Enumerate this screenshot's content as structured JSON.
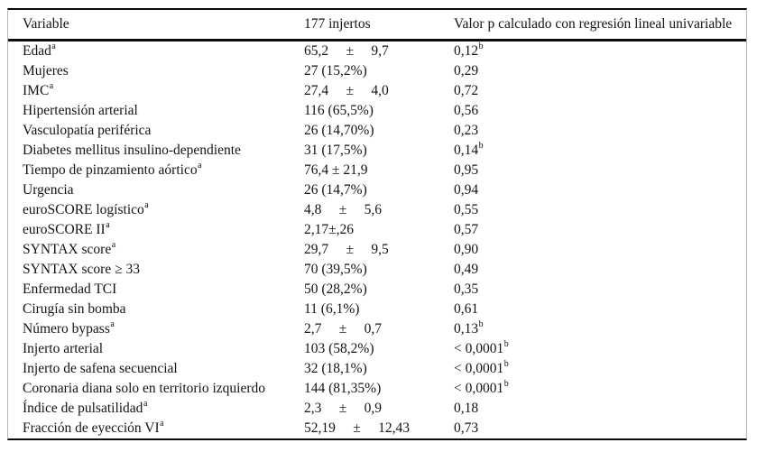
{
  "table": {
    "columns": [
      "Variable",
      "177 injertos",
      "Valor p calculado con regresión lineal univariable"
    ],
    "rule_color": "#0a0a0a",
    "side_rule_color": "#b5b5b5",
    "rows": [
      {
        "variable": "Edad",
        "variable_sup": "a",
        "value": "65,2     ±     9,7",
        "p": "0,12",
        "p_sup": "b"
      },
      {
        "variable": "Mujeres",
        "variable_sup": "",
        "value": "27 (15,2%)",
        "p": "0,29",
        "p_sup": ""
      },
      {
        "variable": "IMC",
        "variable_sup": "a",
        "value": "27,4     ±     4,0",
        "p": "0,72",
        "p_sup": ""
      },
      {
        "variable": "Hipertensión arterial",
        "variable_sup": "",
        "value": "116 (65,5%)",
        "p": "0,56",
        "p_sup": ""
      },
      {
        "variable": "Vasculopatía periférica",
        "variable_sup": "",
        "value": "26 (14,70%)",
        "p": "0,23",
        "p_sup": ""
      },
      {
        "variable": "Diabetes mellitus insulino-dependiente",
        "variable_sup": "",
        "value": "31 (17,5%)",
        "p": "0,14",
        "p_sup": "b"
      },
      {
        "variable": "Tiempo de pinzamiento aórtico",
        "variable_sup": "a",
        "value": "76,4 ± 21,9",
        "p": "0,95",
        "p_sup": ""
      },
      {
        "variable": "Urgencia",
        "variable_sup": "",
        "value": "26 (14,7%)",
        "p": "0,94",
        "p_sup": ""
      },
      {
        "variable": "euroSCORE logístico",
        "variable_sup": "a",
        "value": "4,8     ±     5,6",
        "p": "0,55",
        "p_sup": ""
      },
      {
        "variable": "euroSCORE II",
        "variable_sup": "a",
        "value": "2,17±,26",
        "p": "0,57",
        "p_sup": ""
      },
      {
        "variable": "SYNTAX score",
        "variable_sup": "a",
        "value": "29,7     ±     9,5",
        "p": "0,90",
        "p_sup": ""
      },
      {
        "variable": "SYNTAX score ≥ 33",
        "variable_sup": "",
        "value": "70 (39,5%)",
        "p": "0,49",
        "p_sup": ""
      },
      {
        "variable": "Enfermedad TCI",
        "variable_sup": "",
        "value": "50 (28,2%)",
        "p": "0,35",
        "p_sup": ""
      },
      {
        "variable": "Cirugía sin bomba",
        "variable_sup": "",
        "value": "11 (6,1%)",
        "p": "0,61",
        "p_sup": ""
      },
      {
        "variable": "Número bypass",
        "variable_sup": "a",
        "value": "2,7     ±     0,7",
        "p": "0,13",
        "p_sup": "b"
      },
      {
        "variable": "Injerto arterial",
        "variable_sup": "",
        "value": "103 (58,2%)",
        "p": "< 0,0001",
        "p_sup": "b"
      },
      {
        "variable": "Injerto de safena secuencial",
        "variable_sup": "",
        "value": "32 (18,1%)",
        "p": "< 0,0001",
        "p_sup": "b"
      },
      {
        "variable": "Coronaria diana solo en territorio izquierdo",
        "variable_sup": "",
        "value": "144 (81,35%)",
        "p": "< 0,0001",
        "p_sup": "b"
      },
      {
        "variable": "Índice de pulsatilidad",
        "variable_sup": "a",
        "value": "2,3     ±     0,9",
        "p": "0,18",
        "p_sup": ""
      },
      {
        "variable": "Fracción de eyección VI",
        "variable_sup": "a",
        "value": "52,19     ±     12,43",
        "p": "0,73",
        "p_sup": ""
      }
    ]
  }
}
